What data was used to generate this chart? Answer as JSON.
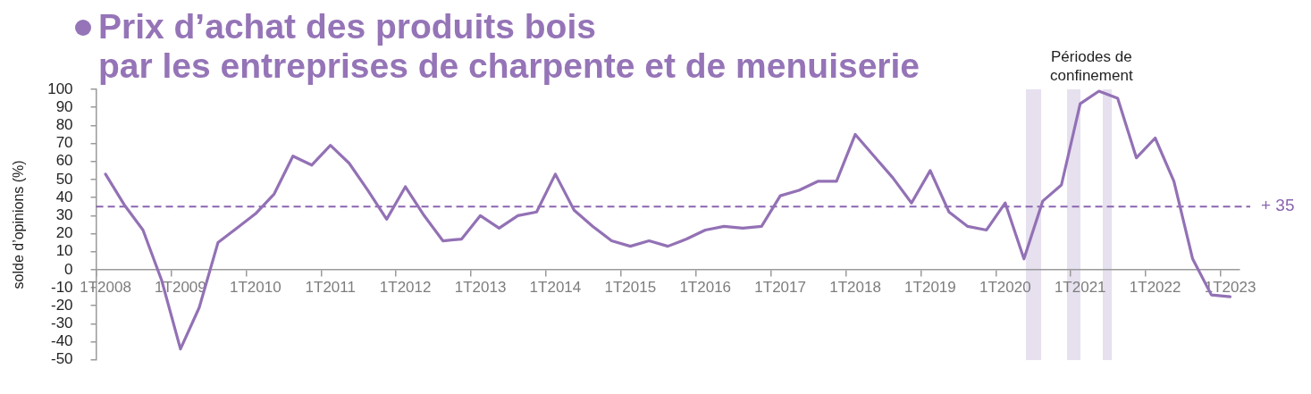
{
  "chart_data": {
    "type": "line",
    "title": "Prix d’achat des produits bois\npar les entreprises de charpente et de menuiserie",
    "ylabel": "solde d’opinions (%)",
    "categories": [
      "1T2008",
      null,
      null,
      null,
      "1T2009",
      null,
      null,
      null,
      "1T2010",
      null,
      null,
      null,
      "1T2011",
      null,
      null,
      null,
      "1T2012",
      null,
      null,
      null,
      "1T2013",
      null,
      null,
      null,
      "1T2014",
      null,
      null,
      null,
      "1T2015",
      null,
      null,
      null,
      "1T2016",
      null,
      null,
      null,
      "1T2017",
      null,
      null,
      null,
      "1T2018",
      null,
      null,
      null,
      "1T2019",
      null,
      null,
      null,
      "1T2020",
      null,
      null,
      null,
      "1T2021",
      null,
      null,
      null,
      "1T2022",
      null,
      null,
      null,
      "1T2023"
    ],
    "values": [
      53,
      36,
      22,
      -6,
      -44,
      -21,
      15,
      23,
      31,
      42,
      63,
      58,
      69,
      59,
      44,
      28,
      46,
      30,
      16,
      17,
      30,
      23,
      30,
      32,
      53,
      33,
      24,
      16,
      13,
      16,
      13,
      17,
      22,
      24,
      23,
      24,
      41,
      44,
      49,
      49,
      75,
      63,
      51,
      37,
      55,
      32,
      24,
      22,
      37,
      6,
      38,
      47,
      92,
      99,
      95,
      62,
      73,
      49,
      6,
      -14,
      -15
    ],
    "color": "#9371b5",
    "marker": "none",
    "grid": false,
    "ylim": [
      -50,
      100
    ],
    "yticks": [
      -50,
      -40,
      -30,
      -20,
      -10,
      0,
      10,
      20,
      30,
      40,
      50,
      60,
      70,
      80,
      90,
      100
    ],
    "ref_lines": [
      {
        "axis": "y",
        "value": 35,
        "label": "+ 35",
        "color": "#8a64b0",
        "line_style": "dashed"
      }
    ],
    "annotations": [
      "Périodes de confinement"
    ]
  }
}
